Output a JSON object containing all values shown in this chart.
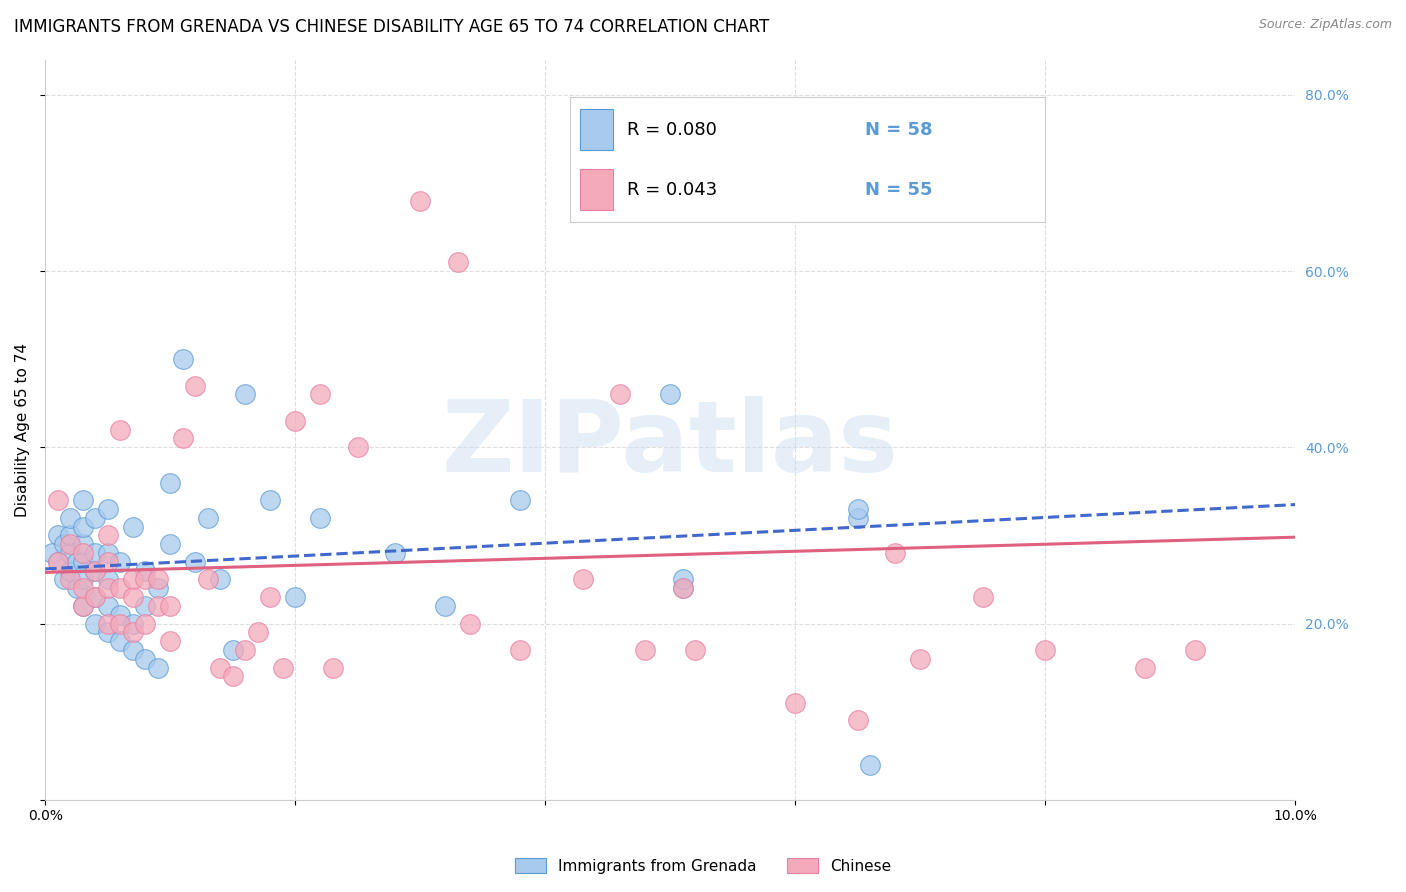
{
  "title": "IMMIGRANTS FROM GRENADA VS CHINESE DISABILITY AGE 65 TO 74 CORRELATION CHART",
  "source": "Source: ZipAtlas.com",
  "ylabel": "Disability Age 65 to 74",
  "x_min": 0.0,
  "x_max": 0.1,
  "y_min": 0.0,
  "y_max": 0.84,
  "x_ticks": [
    0.0,
    0.02,
    0.04,
    0.06,
    0.08,
    0.1
  ],
  "x_tick_labels": [
    "0.0%",
    "",
    "",
    "",
    "",
    "10.0%"
  ],
  "y_ticks": [
    0.0,
    0.2,
    0.4,
    0.6,
    0.8
  ],
  "y_tick_labels": [
    "",
    "20.0%",
    "40.0%",
    "60.0%",
    "80.0%"
  ],
  "blue_fill": "#A8CAED",
  "pink_fill": "#F4AABB",
  "blue_edge": "#5B9BD5",
  "pink_edge": "#E87EA0",
  "blue_trend_color": "#4169CD",
  "pink_trend_color": "#E06080",
  "legend_R1": "R = 0.080",
  "legend_N1": "N = 58",
  "legend_R2": "R = 0.043",
  "legend_N2": "N = 55",
  "legend_label1": "Immigrants from Grenada",
  "legend_label2": "Chinese",
  "watermark": "ZIPatlas",
  "blue_scatter_x": [
    0.0005,
    0.001,
    0.001,
    0.0015,
    0.0015,
    0.002,
    0.002,
    0.002,
    0.002,
    0.0025,
    0.0025,
    0.003,
    0.003,
    0.003,
    0.003,
    0.003,
    0.003,
    0.004,
    0.004,
    0.004,
    0.004,
    0.004,
    0.005,
    0.005,
    0.005,
    0.005,
    0.005,
    0.006,
    0.006,
    0.006,
    0.007,
    0.007,
    0.007,
    0.008,
    0.008,
    0.008,
    0.009,
    0.009,
    0.01,
    0.01,
    0.011,
    0.012,
    0.013,
    0.014,
    0.015,
    0.016,
    0.018,
    0.02,
    0.022,
    0.028,
    0.032,
    0.038,
    0.05,
    0.051,
    0.051,
    0.065,
    0.065,
    0.066
  ],
  "blue_scatter_y": [
    0.28,
    0.3,
    0.27,
    0.25,
    0.29,
    0.26,
    0.28,
    0.3,
    0.32,
    0.24,
    0.27,
    0.22,
    0.25,
    0.27,
    0.29,
    0.31,
    0.34,
    0.2,
    0.23,
    0.26,
    0.28,
    0.32,
    0.19,
    0.22,
    0.25,
    0.28,
    0.33,
    0.18,
    0.21,
    0.27,
    0.17,
    0.2,
    0.31,
    0.16,
    0.22,
    0.26,
    0.15,
    0.24,
    0.29,
    0.36,
    0.5,
    0.27,
    0.32,
    0.25,
    0.17,
    0.46,
    0.34,
    0.23,
    0.32,
    0.28,
    0.22,
    0.34,
    0.46,
    0.24,
    0.25,
    0.32,
    0.33,
    0.04
  ],
  "pink_scatter_x": [
    0.001,
    0.001,
    0.002,
    0.002,
    0.003,
    0.003,
    0.003,
    0.004,
    0.004,
    0.005,
    0.005,
    0.005,
    0.005,
    0.006,
    0.006,
    0.006,
    0.007,
    0.007,
    0.007,
    0.008,
    0.008,
    0.009,
    0.009,
    0.01,
    0.01,
    0.011,
    0.012,
    0.013,
    0.014,
    0.015,
    0.016,
    0.017,
    0.018,
    0.019,
    0.02,
    0.022,
    0.023,
    0.025,
    0.03,
    0.033,
    0.038,
    0.043,
    0.046,
    0.048,
    0.051,
    0.052,
    0.06,
    0.065,
    0.068,
    0.07,
    0.075,
    0.08,
    0.088,
    0.092,
    0.034
  ],
  "pink_scatter_y": [
    0.34,
    0.27,
    0.25,
    0.29,
    0.22,
    0.24,
    0.28,
    0.23,
    0.26,
    0.2,
    0.24,
    0.27,
    0.3,
    0.2,
    0.24,
    0.42,
    0.19,
    0.23,
    0.25,
    0.2,
    0.25,
    0.22,
    0.25,
    0.18,
    0.22,
    0.41,
    0.47,
    0.25,
    0.15,
    0.14,
    0.17,
    0.19,
    0.23,
    0.15,
    0.43,
    0.46,
    0.15,
    0.4,
    0.68,
    0.61,
    0.17,
    0.25,
    0.46,
    0.17,
    0.24,
    0.17,
    0.11,
    0.09,
    0.28,
    0.16,
    0.23,
    0.17,
    0.15,
    0.17,
    0.2
  ],
  "blue_trend_x": [
    0.0,
    0.1
  ],
  "blue_trend_y": [
    0.262,
    0.335
  ],
  "pink_trend_x": [
    0.0,
    0.1
  ],
  "pink_trend_y": [
    0.258,
    0.298
  ],
  "grid_color": "#DEDEDE",
  "grid_style": "--",
  "background_color": "#FFFFFF",
  "title_fontsize": 12,
  "axis_label_fontsize": 11,
  "tick_fontsize": 10,
  "legend_fontsize": 13,
  "right_tick_color": "#5B9BD5"
}
